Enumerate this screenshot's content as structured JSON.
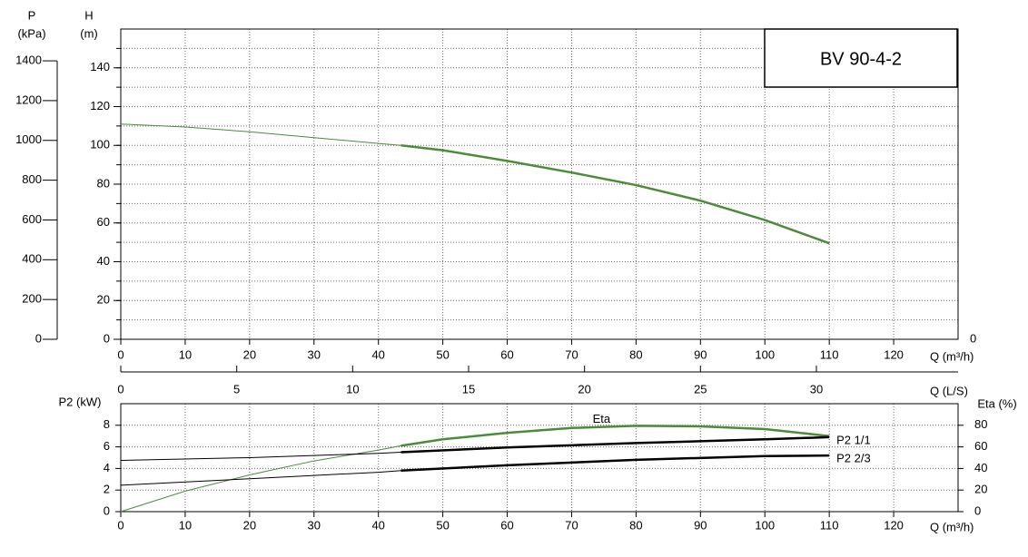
{
  "chart_data": [
    {
      "type": "line",
      "box_label": "BV 90-4-2",
      "x_label": "Q (m³/h)",
      "xlim": [
        0,
        130
      ],
      "xticks": [
        0,
        10,
        20,
        30,
        40,
        50,
        60,
        70,
        80,
        90,
        100,
        110,
        120
      ],
      "xgrid": [
        10,
        20,
        30,
        40,
        50,
        60,
        70,
        80,
        90,
        100,
        110,
        120
      ],
      "y_label": "H",
      "y_unit": "(m)",
      "ylim": [
        0,
        160
      ],
      "yticks": [
        0,
        20,
        40,
        60,
        80,
        100,
        120,
        140
      ],
      "ygrid": [
        10,
        20,
        30,
        40,
        50,
        60,
        70,
        80,
        90,
        100,
        110,
        120,
        130,
        140,
        150
      ],
      "p_label": "P",
      "p_unit": "(kPa)",
      "plim": [
        0,
        1560
      ],
      "pticks": [
        0,
        200,
        400,
        600,
        800,
        1000,
        1200,
        1400
      ],
      "right_yticks": [
        0
      ],
      "x2_label": "Q (L/S)",
      "x2lim": [
        0,
        36.11
      ],
      "x2ticks": [
        0,
        5,
        10,
        15,
        20,
        25,
        30
      ],
      "series": [
        {
          "color": "#4a8c3a",
          "bold_range": [
            43.5,
            110
          ],
          "x": [
            0,
            10,
            20,
            30,
            40,
            43.5,
            50,
            60,
            70,
            80,
            90,
            100,
            110
          ],
          "values": [
            111,
            109.5,
            107,
            104,
            101,
            100,
            97.5,
            92,
            86,
            79.5,
            71.5,
            61.5,
            49.5
          ]
        }
      ]
    },
    {
      "type": "line",
      "x_label": "Q (m³/h)",
      "xlim": [
        0,
        130
      ],
      "xticks": [
        0,
        10,
        20,
        30,
        40,
        50,
        60,
        70,
        80,
        90,
        100,
        110,
        120
      ],
      "xgrid": [
        10,
        20,
        30,
        40,
        50,
        60,
        70,
        80,
        90,
        100,
        110,
        120
      ],
      "y_label": "P2 (kW)",
      "ylim": [
        0,
        10
      ],
      "yticks": [
        0,
        2,
        4,
        6,
        8
      ],
      "ygrid": [
        2,
        4,
        6,
        8
      ],
      "y2_label": "Eta (%)",
      "y2lim": [
        0,
        100
      ],
      "y2ticks": [
        0,
        20,
        40,
        60,
        80
      ],
      "series": [
        {
          "name": "Eta",
          "color": "#4a8c3a",
          "axis": "y2",
          "bold_range": [
            43.5,
            110
          ],
          "x": [
            0,
            10,
            20,
            30,
            40,
            43.5,
            50,
            60,
            70,
            80,
            90,
            100,
            110
          ],
          "values": [
            0,
            19,
            34,
            47,
            57,
            61,
            67,
            73,
            77.5,
            79.5,
            79,
            76.5,
            70
          ]
        },
        {
          "name": "P2 1/1",
          "color": "#000000",
          "bold_range": [
            43.5,
            110
          ],
          "x": [
            0,
            20,
            40,
            43.5,
            60,
            80,
            100,
            110
          ],
          "values": [
            4.75,
            5.0,
            5.4,
            5.5,
            5.95,
            6.35,
            6.7,
            6.9
          ]
        },
        {
          "name": "P2 2/3",
          "color": "#000000",
          "bold_range": [
            43.5,
            110
          ],
          "x": [
            0,
            20,
            40,
            43.5,
            60,
            80,
            100,
            110
          ],
          "values": [
            2.45,
            3.05,
            3.65,
            3.8,
            4.3,
            4.8,
            5.15,
            5.2
          ]
        }
      ]
    }
  ]
}
